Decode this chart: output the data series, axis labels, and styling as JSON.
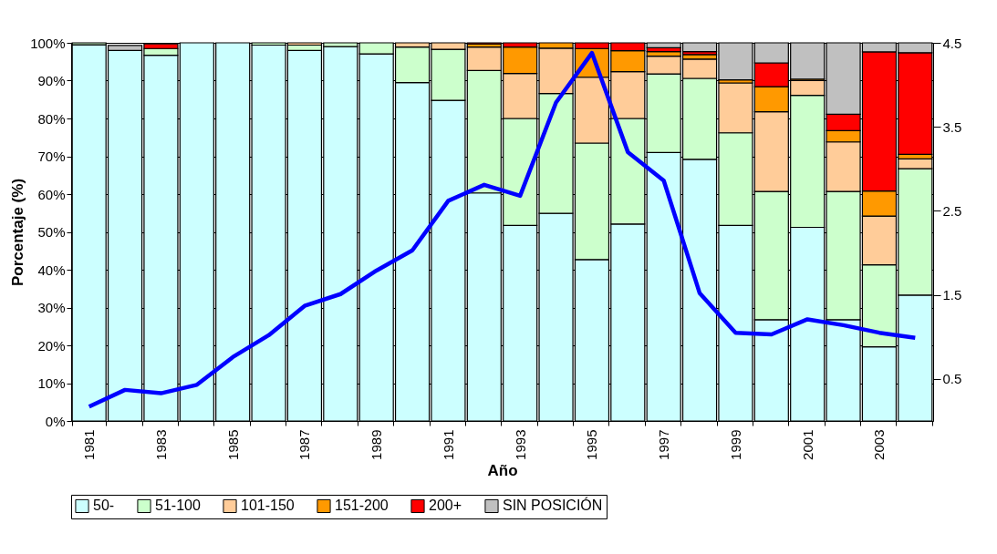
{
  "chart_data": {
    "type": "bar",
    "stacked": true,
    "xlabel": "Año",
    "ylabel": "Porcentaje (%)",
    "grid": "y",
    "legend": "bottom",
    "categories": [
      "1981",
      null,
      "1983",
      null,
      "1985",
      null,
      "1987",
      null,
      "1989",
      null,
      "1991",
      null,
      "1993",
      null,
      "1995",
      null,
      "1997",
      null,
      "1999",
      null,
      "2001",
      null,
      "2003",
      null
    ],
    "ylim": [
      0,
      100
    ],
    "yticks": [
      {
        "value": 0,
        "label": "0%"
      },
      {
        "value": 10,
        "label": "10%"
      },
      {
        "value": 20,
        "label": "20%"
      },
      {
        "value": 30,
        "label": "30%"
      },
      {
        "value": 40,
        "label": "40%"
      },
      {
        "value": 50,
        "label": "50%"
      },
      {
        "value": 60,
        "label": "60%"
      },
      {
        "value": 70,
        "label": "70%"
      },
      {
        "value": 80,
        "label": "80%"
      },
      {
        "value": 90,
        "label": "90%"
      },
      {
        "value": 100,
        "label": "100%"
      }
    ],
    "y2lim": [
      0,
      4.5
    ],
    "y2ticks": [
      0.5,
      1.5,
      2.5,
      3.5,
      4.5
    ],
    "series": [
      {
        "name": "50-",
        "color": "#ccffff",
        "values": [
          99.5,
          98,
          96.7,
          100,
          100,
          99.4,
          98,
          99,
          97.1,
          89.5,
          84.8,
          60.3,
          51.7,
          54.9,
          42.7,
          52.1,
          71,
          69.2,
          51.7,
          26.8,
          51.2,
          26.8,
          19.6,
          33.3
        ]
      },
      {
        "name": "51-100",
        "color": "#ccffcc",
        "values": [
          0.5,
          null,
          1.8,
          0,
          0,
          0.6,
          1.4,
          1,
          2.9,
          9.4,
          13.5,
          32.4,
          28.3,
          31.7,
          30.8,
          27.9,
          20.8,
          21.4,
          24.5,
          33.9,
          34.9,
          33.9,
          21.7,
          33.4
        ]
      },
      {
        "name": "101-150",
        "color": "#ffcc99",
        "values": [
          0,
          null,
          null,
          0,
          0,
          0,
          0.6,
          0,
          0,
          1.1,
          1.7,
          6.2,
          11.9,
          12,
          17.4,
          12.4,
          4.7,
          5.1,
          13.2,
          21.1,
          3.9,
          13.1,
          12.9,
          2.6
        ]
      },
      {
        "name": "151-200",
        "color": "#ff9900",
        "values": [
          0,
          0,
          0,
          0,
          0,
          0,
          0,
          0,
          0,
          0,
          0,
          0.8,
          7,
          1.4,
          7.6,
          5.5,
          1.2,
          1.2,
          0.8,
          6.6,
          0.4,
          3,
          6.6,
          1.2
        ]
      },
      {
        "name": "200+",
        "color": "#ff0000",
        "values": [
          0,
          0,
          1.2,
          0,
          0,
          0,
          0,
          0,
          0,
          0,
          0,
          0.3,
          1.1,
          0,
          1.5,
          2.1,
          1,
          0.8,
          0,
          6.3,
          0,
          4.3,
          36.8,
          26.9
        ]
      },
      {
        "name": "SIN POSICIÓN",
        "color": "#c0c0c0",
        "values": [
          0,
          1.3,
          0,
          0,
          0,
          0,
          0,
          0,
          0,
          0,
          0,
          0,
          0,
          0,
          0,
          0,
          1.3,
          2.3,
          9.8,
          5.3,
          9.6,
          18.9,
          2.4,
          2.6
        ]
      },
      {
        "type": "line",
        "axis": "y2",
        "color": "#0000ff",
        "values": [
          0.17,
          0.37,
          0.33,
          0.43,
          0.76,
          1.02,
          1.37,
          1.51,
          1.79,
          2.03,
          2.62,
          2.81,
          2.68,
          3.79,
          4.38,
          3.2,
          2.86,
          1.52,
          1.05,
          1.03,
          1.21,
          1.14,
          1.05,
          0.99
        ]
      }
    ]
  }
}
